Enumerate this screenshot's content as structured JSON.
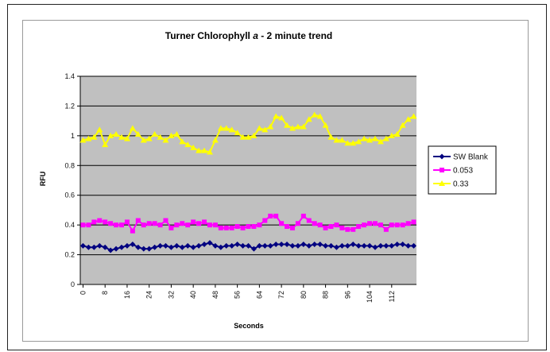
{
  "chart_data": {
    "type": "line",
    "title_main": "Turner Chlorophyll ",
    "title_italic": "a",
    "title_rest": " - 2 minute trend",
    "xlabel": "Seconds",
    "ylabel": "RFU",
    "ylim": [
      0,
      1.4
    ],
    "yticks": [
      "0",
      "0.2",
      "0.4",
      "0.6",
      "0.8",
      "1",
      "1.2",
      "1.4"
    ],
    "xticks": [
      "0",
      "8",
      "16",
      "24",
      "32",
      "40",
      "48",
      "56",
      "64",
      "72",
      "80",
      "88",
      "96",
      "104",
      "112"
    ],
    "x_start": 0,
    "x_step": 2,
    "grid": "horizontal",
    "plot_background": "#c0c0c0",
    "legend_position": "right",
    "series": [
      {
        "name": "SW Blank",
        "color": "#000080",
        "marker": "diamond",
        "values": [
          0.26,
          0.25,
          0.25,
          0.26,
          0.25,
          0.23,
          0.24,
          0.25,
          0.26,
          0.27,
          0.25,
          0.24,
          0.24,
          0.25,
          0.26,
          0.26,
          0.25,
          0.26,
          0.25,
          0.26,
          0.25,
          0.26,
          0.27,
          0.28,
          0.26,
          0.25,
          0.26,
          0.26,
          0.27,
          0.26,
          0.26,
          0.24,
          0.26,
          0.26,
          0.26,
          0.27,
          0.27,
          0.27,
          0.26,
          0.26,
          0.27,
          0.26,
          0.27,
          0.27,
          0.26,
          0.26,
          0.25,
          0.26,
          0.26,
          0.27,
          0.26,
          0.26,
          0.26,
          0.25,
          0.26,
          0.26,
          0.26,
          0.27,
          0.27,
          0.26,
          0.26
        ]
      },
      {
        "name": "0.053",
        "color": "#ff00ff",
        "marker": "square",
        "values": [
          0.4,
          0.4,
          0.42,
          0.43,
          0.42,
          0.41,
          0.4,
          0.4,
          0.42,
          0.36,
          0.43,
          0.4,
          0.41,
          0.41,
          0.4,
          0.43,
          0.38,
          0.4,
          0.41,
          0.4,
          0.42,
          0.41,
          0.42,
          0.4,
          0.4,
          0.38,
          0.38,
          0.38,
          0.39,
          0.38,
          0.39,
          0.39,
          0.4,
          0.43,
          0.46,
          0.46,
          0.41,
          0.39,
          0.38,
          0.41,
          0.46,
          0.43,
          0.41,
          0.4,
          0.38,
          0.39,
          0.4,
          0.38,
          0.37,
          0.37,
          0.39,
          0.4,
          0.41,
          0.41,
          0.4,
          0.37,
          0.4,
          0.4,
          0.4,
          0.41,
          0.42
        ]
      },
      {
        "name": "0.33",
        "color": "#ffff00",
        "marker": "triangle",
        "values": [
          0.97,
          0.98,
          0.99,
          1.04,
          0.94,
          1.0,
          1.01,
          0.99,
          0.98,
          1.05,
          1.01,
          0.97,
          0.98,
          1.01,
          0.99,
          0.97,
          1.0,
          1.01,
          0.96,
          0.94,
          0.92,
          0.9,
          0.9,
          0.89,
          0.97,
          1.05,
          1.05,
          1.04,
          1.02,
          0.99,
          0.99,
          1.0,
          1.05,
          1.04,
          1.06,
          1.13,
          1.12,
          1.07,
          1.05,
          1.06,
          1.06,
          1.11,
          1.14,
          1.13,
          1.07,
          0.99,
          0.97,
          0.97,
          0.95,
          0.95,
          0.96,
          0.98,
          0.97,
          0.98,
          0.96,
          0.98,
          1.0,
          1.01,
          1.07,
          1.11,
          1.13
        ]
      }
    ]
  }
}
